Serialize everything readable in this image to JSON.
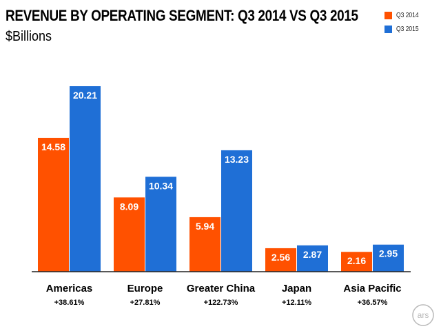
{
  "chart_data": {
    "type": "bar",
    "title": "REVENUE BY OPERATING SEGMENT: Q3 2014 VS Q3 2015",
    "subtitle": "$Billions",
    "categories": [
      "Americas",
      "Europe",
      "Greater China",
      "Japan",
      "Asia Pacific"
    ],
    "growth": [
      "+38.61%",
      "+27.81%",
      "+122.73%",
      "+12.11%",
      "+36.57%"
    ],
    "series": [
      {
        "name": "Q3 2014",
        "color": "#ff5100",
        "values": [
          14.58,
          8.09,
          5.94,
          2.56,
          2.16
        ],
        "labels": [
          "14.58",
          "8.09",
          "5.94",
          "2.56",
          "2.16"
        ]
      },
      {
        "name": "Q3 2015",
        "color": "#1f6fd6",
        "values": [
          20.21,
          10.34,
          13.23,
          2.87,
          2.95
        ],
        "labels": [
          "20.21",
          "10.34",
          "13.23",
          "2.87",
          "2.95"
        ]
      }
    ],
    "ylim": [
      0,
      20.21
    ],
    "grid": false,
    "legend_position": "top-right"
  },
  "watermark": {
    "icon": "ars-logo",
    "text": "ars"
  }
}
